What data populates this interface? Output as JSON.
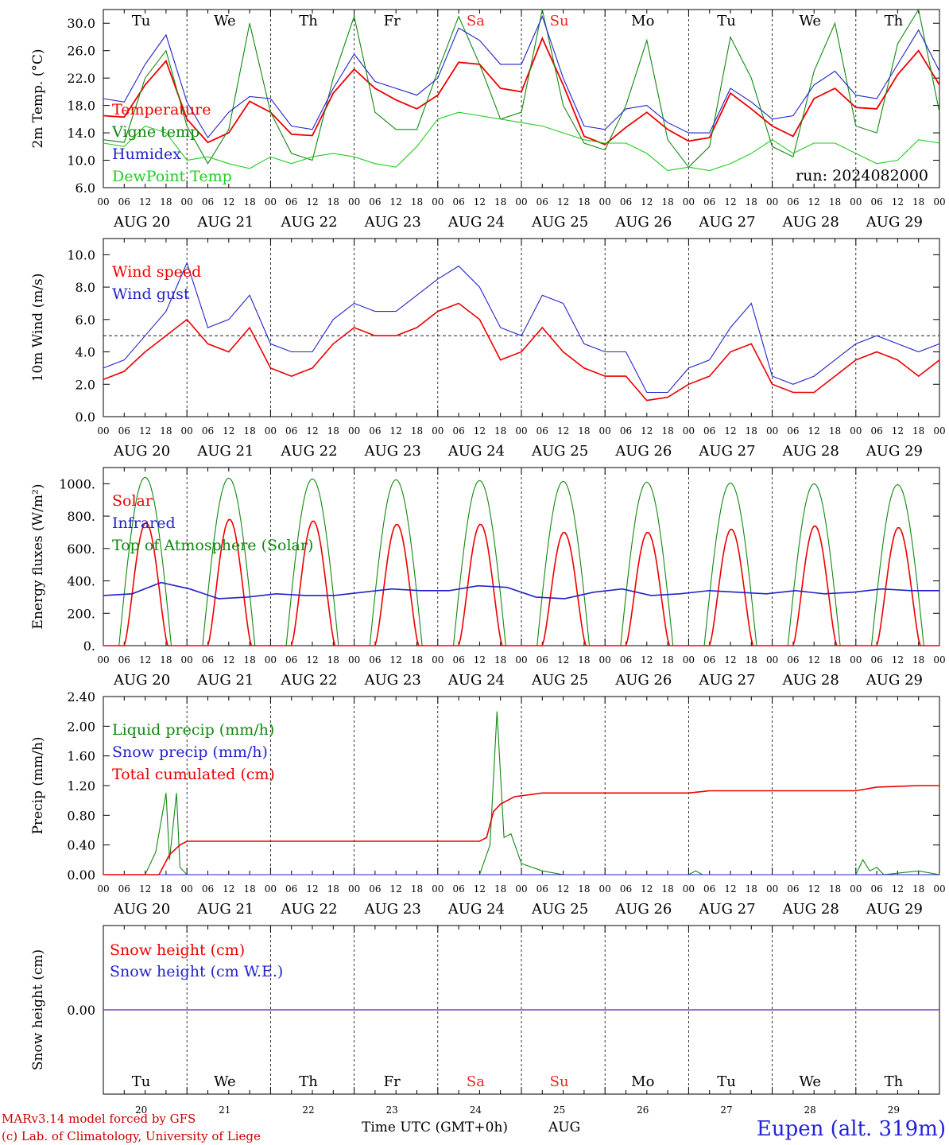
{
  "days": [
    {
      "abbr": "Tu",
      "color": "#000000",
      "date": "20",
      "label": "AUG 20"
    },
    {
      "abbr": "We",
      "color": "#000000",
      "date": "21",
      "label": "AUG 21"
    },
    {
      "abbr": "Th",
      "color": "#000000",
      "date": "22",
      "label": "AUG 22"
    },
    {
      "abbr": "Fr",
      "color": "#000000",
      "date": "23",
      "label": "AUG 23"
    },
    {
      "abbr": "Sa",
      "color": "#ee2222",
      "date": "24",
      "label": "AUG 24"
    },
    {
      "abbr": "Su",
      "color": "#ee2222",
      "date": "25",
      "label": "AUG 25"
    },
    {
      "abbr": "Mo",
      "color": "#000000",
      "date": "26",
      "label": "AUG 26"
    },
    {
      "abbr": "Tu",
      "color": "#000000",
      "date": "27",
      "label": "AUG 27"
    },
    {
      "abbr": "We",
      "color": "#000000",
      "date": "28",
      "label": "AUG 28"
    },
    {
      "abbr": "Th",
      "color": "#000000",
      "date": "29",
      "label": "AUG 29"
    }
  ],
  "hour_ticks": [
    "00",
    "06",
    "12",
    "18"
  ],
  "hour_tick_end": "00",
  "footer": {
    "model": "MARv3.14 model forced by GFS",
    "lab": "(c) Lab. of Climatology, University of Liege",
    "xlabel": "Time UTC (GMT+0h)",
    "month": "AUG",
    "station": "Eupen (alt. 319m)"
  },
  "chart_data": [
    {
      "type": "line",
      "ylabel": "2m Temp. (°C)",
      "ylim": [
        6,
        32
      ],
      "yticks": [
        "6.0",
        "10.0",
        "14.0",
        "18.0",
        "22.0",
        "26.0",
        "30.0"
      ],
      "annotation": "run: 2024082000",
      "x_hours": [
        0,
        6,
        12,
        18,
        24,
        30,
        36,
        42,
        48,
        54,
        60,
        66,
        72,
        78,
        84,
        90,
        96,
        102,
        108,
        114,
        120,
        126,
        132,
        138,
        144,
        150,
        156,
        162,
        168,
        174,
        180,
        186,
        192,
        198,
        204,
        210,
        216,
        222,
        228,
        234,
        240
      ],
      "series": [
        {
          "name": "Temperature",
          "color": "#ee0000",
          "values": [
            16.5,
            16.3,
            21,
            24.5,
            16,
            12.6,
            14,
            18.6,
            17,
            13.8,
            13.6,
            19.8,
            23.3,
            20.5,
            18.8,
            17.5,
            19.5,
            24.3,
            24,
            20.5,
            20,
            27.8,
            21,
            13.5,
            12.3,
            14.8,
            17,
            14.5,
            12.8,
            13.3,
            19.8,
            17.5,
            15,
            13.5,
            19,
            20.5,
            17.7,
            17.5,
            22.5,
            26,
            21
          ]
        },
        {
          "name": "Vigne temp",
          "color": "#118811",
          "values": [
            13,
            12.6,
            22,
            26,
            15,
            9.5,
            14.5,
            30,
            17,
            11,
            10,
            22,
            31,
            17,
            14.5,
            14.5,
            23,
            31,
            24,
            16,
            17,
            32,
            18,
            12.5,
            11.5,
            18,
            27.5,
            13,
            9,
            12,
            28,
            22,
            12,
            10.5,
            23,
            30,
            15,
            14,
            27,
            32,
            17
          ]
        },
        {
          "name": "Humidex",
          "color": "#2222cc",
          "values": [
            19,
            18.5,
            24,
            28.3,
            18.5,
            13.3,
            17,
            19.3,
            19,
            15,
            14.5,
            20.5,
            25.5,
            21.5,
            20.5,
            19.5,
            22,
            29.3,
            27.5,
            24,
            24,
            31,
            22,
            15,
            14.5,
            17.5,
            18,
            15.5,
            14,
            14,
            20.5,
            18.5,
            16,
            16.5,
            21,
            23,
            19.5,
            19,
            24,
            29,
            23
          ]
        },
        {
          "name": "DewPoint Temp",
          "color": "#22cc22",
          "values": [
            12.5,
            12,
            15,
            14,
            10,
            10.5,
            9.5,
            8.8,
            10.5,
            9.5,
            10.5,
            11,
            10.5,
            9.5,
            9,
            12,
            16,
            17,
            16.5,
            16,
            15.5,
            15,
            14,
            13,
            12.5,
            12.5,
            11,
            8.5,
            9,
            8.5,
            9.5,
            11,
            13,
            11,
            12.5,
            12.5,
            11,
            9.5,
            10,
            13,
            12.5
          ]
        }
      ]
    },
    {
      "type": "line",
      "ylabel": "10m Wind (m/s)",
      "ylim": [
        0,
        11
      ],
      "yticks": [
        "0.0",
        "2.0",
        "4.0",
        "6.0",
        "8.0",
        "10.0"
      ],
      "reference_line": 5,
      "x_hours": [
        0,
        6,
        12,
        18,
        24,
        30,
        36,
        42,
        48,
        54,
        60,
        66,
        72,
        78,
        84,
        90,
        96,
        102,
        108,
        114,
        120,
        126,
        132,
        138,
        144,
        150,
        156,
        162,
        168,
        174,
        180,
        186,
        192,
        198,
        204,
        210,
        216,
        222,
        228,
        234,
        240
      ],
      "series": [
        {
          "name": "Wind speed",
          "color": "#ee0000",
          "values": [
            2.3,
            2.8,
            4,
            5,
            6,
            4.5,
            4,
            5.5,
            3,
            2.5,
            3,
            4.5,
            5.5,
            5,
            5,
            5.5,
            6.5,
            7,
            6,
            3.5,
            4,
            5.5,
            4,
            3,
            2.5,
            2.5,
            1,
            1.2,
            2,
            2.5,
            4,
            4.5,
            2,
            1.5,
            1.5,
            2.5,
            3.5,
            4,
            3.5,
            2.5,
            3.5
          ]
        },
        {
          "name": "Wind gust",
          "color": "#2222cc",
          "values": [
            3,
            3.5,
            5,
            6.5,
            9.5,
            5.5,
            6,
            7.5,
            4.5,
            4,
            4,
            6,
            7,
            6.5,
            6.5,
            7.5,
            8.5,
            9.3,
            8,
            5.5,
            5,
            7.5,
            7,
            4.5,
            4,
            4,
            1.5,
            1.5,
            3,
            3.5,
            5.5,
            7,
            2.5,
            2,
            2.5,
            3.5,
            4.5,
            5,
            4.5,
            4,
            4.5
          ]
        }
      ]
    },
    {
      "type": "line",
      "ylabel": "Energy fluxes (W/m²)",
      "ylim": [
        0,
        1100
      ],
      "yticks": [
        "0.",
        "200.",
        "400.",
        "600.",
        "800.",
        "1000."
      ],
      "x_hours": [
        0,
        3,
        6,
        9,
        12,
        15,
        18,
        21,
        24
      ],
      "series": [
        {
          "name": "Solar",
          "color": "#ee0000",
          "daily_peaks": [
            760,
            780,
            770,
            750,
            750,
            700,
            700,
            720,
            740,
            730
          ]
        },
        {
          "name": "Infrared",
          "color": "#2222cc",
          "values_every_12h": [
            310,
            320,
            390,
            350,
            290,
            300,
            320,
            310,
            310,
            330,
            350,
            340,
            340,
            370,
            360,
            300,
            290,
            330,
            350,
            310,
            320,
            340,
            330,
            320,
            340,
            320,
            330,
            350,
            340,
            340
          ]
        },
        {
          "name": "Top of Atmosphere (Solar)",
          "color": "#118811",
          "daily_peaks": [
            1040,
            1035,
            1030,
            1025,
            1020,
            1015,
            1010,
            1005,
            1000,
            995
          ]
        }
      ]
    },
    {
      "type": "line",
      "ylabel": "Precip (mm/h)",
      "ylim": [
        0,
        2.4
      ],
      "yticks": [
        "0.00",
        "0.40",
        "0.80",
        "1.20",
        "1.60",
        "2.00",
        "2.40"
      ],
      "series": [
        {
          "name": "Liquid precip (mm/h)",
          "color": "#118811",
          "points": [
            [
              0,
              0
            ],
            [
              12,
              0
            ],
            [
              15,
              0.3
            ],
            [
              18,
              1.1
            ],
            [
              19,
              0.2
            ],
            [
              21,
              1.1
            ],
            [
              22,
              0.1
            ],
            [
              24,
              0
            ],
            [
              108,
              0
            ],
            [
              111,
              0.4
            ],
            [
              113,
              2.2
            ],
            [
              115,
              0.5
            ],
            [
              117,
              0.55
            ],
            [
              120,
              0.15
            ],
            [
              126,
              0.05
            ],
            [
              132,
              0
            ],
            [
              168,
              0
            ],
            [
              170,
              0.05
            ],
            [
              172,
              0
            ],
            [
              216,
              0
            ],
            [
              218,
              0.2
            ],
            [
              220,
              0.05
            ],
            [
              222,
              0.1
            ],
            [
              224,
              0
            ],
            [
              234,
              0.05
            ],
            [
              240,
              0
            ]
          ]
        },
        {
          "name": "Snow precip (mm/h)",
          "color": "#2222cc",
          "points": [
            [
              0,
              0
            ],
            [
              240,
              0
            ]
          ]
        },
        {
          "name": "Total cumulated (cm)",
          "color": "#ee0000",
          "points": [
            [
              0,
              0
            ],
            [
              16,
              0
            ],
            [
              19,
              0.27
            ],
            [
              22,
              0.4
            ],
            [
              24,
              0.45
            ],
            [
              108,
              0.45
            ],
            [
              110,
              0.5
            ],
            [
              112,
              0.85
            ],
            [
              114,
              0.95
            ],
            [
              118,
              1.05
            ],
            [
              126,
              1.1
            ],
            [
              168,
              1.1
            ],
            [
              174,
              1.13
            ],
            [
              216,
              1.13
            ],
            [
              222,
              1.18
            ],
            [
              234,
              1.2
            ],
            [
              240,
              1.2
            ]
          ]
        }
      ]
    },
    {
      "type": "line",
      "ylabel": "Snow height (cm)",
      "yticks": [
        "0.00"
      ],
      "series": [
        {
          "name": "Snow height (cm)",
          "color": "#ee0000",
          "value": 0
        },
        {
          "name": "Snow height (cm W.E.)",
          "color": "#2222cc",
          "value": 0
        }
      ]
    }
  ]
}
